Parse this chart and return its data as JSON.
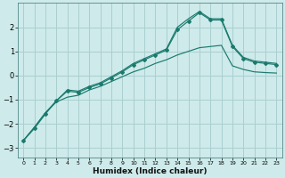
{
  "background_color": "#ceeaea",
  "grid_color": "#aacfcf",
  "line_color": "#1a7a6e",
  "xlabel": "Humidex (Indice chaleur)",
  "x_ticks": [
    0,
    1,
    2,
    3,
    4,
    5,
    6,
    7,
    8,
    9,
    10,
    11,
    12,
    13,
    14,
    15,
    16,
    17,
    18,
    19,
    20,
    21,
    22,
    23
  ],
  "ylim": [
    -3.4,
    3.0
  ],
  "xlim": [
    -0.5,
    23.5
  ],
  "y_ticks": [
    -3,
    -2,
    -1,
    0,
    1,
    2
  ],
  "series1_x": [
    0,
    1,
    2,
    3,
    4,
    5,
    6,
    7,
    8,
    9,
    10,
    11,
    12,
    13,
    14,
    15,
    16,
    17,
    18,
    19,
    20,
    21,
    22,
    23
  ],
  "series1_y": [
    -2.7,
    -2.2,
    -1.6,
    -1.05,
    -0.65,
    -0.7,
    -0.5,
    -0.35,
    -0.1,
    0.15,
    0.45,
    0.65,
    0.85,
    1.05,
    1.9,
    2.25,
    2.6,
    2.3,
    2.3,
    1.2,
    0.7,
    0.55,
    0.5,
    0.45
  ],
  "series2_x": [
    0,
    1,
    2,
    3,
    4,
    5,
    6,
    7,
    8,
    9,
    10,
    11,
    12,
    13,
    14,
    15,
    16,
    17,
    18,
    19,
    20,
    21,
    22,
    23
  ],
  "series2_y": [
    -2.7,
    -2.15,
    -1.55,
    -1.05,
    -0.6,
    -0.65,
    -0.45,
    -0.3,
    -0.05,
    0.2,
    0.5,
    0.7,
    0.9,
    1.1,
    2.0,
    2.35,
    2.65,
    2.35,
    2.35,
    1.25,
    0.75,
    0.6,
    0.55,
    0.5
  ],
  "series3_x": [
    0,
    1,
    2,
    3,
    4,
    5,
    6,
    7,
    8,
    9,
    10,
    11,
    12,
    13,
    14,
    15,
    16,
    17,
    18,
    19,
    20,
    21,
    22,
    23
  ],
  "series3_y": [
    -2.7,
    -2.15,
    -1.55,
    -1.1,
    -0.9,
    -0.82,
    -0.6,
    -0.45,
    -0.25,
    -0.05,
    0.15,
    0.3,
    0.5,
    0.65,
    0.85,
    1.0,
    1.15,
    1.2,
    1.25,
    0.4,
    0.25,
    0.15,
    0.12,
    0.1
  ]
}
